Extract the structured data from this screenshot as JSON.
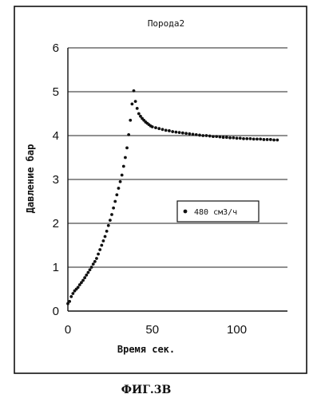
{
  "chart_data": {
    "type": "scatter",
    "title": "Порода2",
    "xlabel": "Время сек.",
    "ylabel": "Давление бар",
    "xlim": [
      0,
      130
    ],
    "ylim": [
      0,
      6
    ],
    "x_ticks": [
      "0",
      "50",
      "100"
    ],
    "y_ticks": [
      "0",
      "1",
      "2",
      "3",
      "4",
      "5",
      "6"
    ],
    "grid": "horizontal",
    "legend_position": "right-middle",
    "caption": "ФИГ.3В",
    "series": [
      {
        "name": "480 см3/ч",
        "x": [
          0,
          1,
          2,
          3,
          4,
          5,
          6,
          7,
          8,
          9,
          10,
          11,
          12,
          13,
          14,
          15,
          16,
          17,
          18,
          19,
          20,
          21,
          22,
          23,
          24,
          25,
          26,
          27,
          28,
          29,
          30,
          31,
          32,
          33,
          34,
          35,
          36,
          37,
          38,
          39,
          40,
          41,
          42,
          43,
          44,
          45,
          46,
          47,
          48,
          49,
          50,
          52,
          54,
          56,
          58,
          60,
          62,
          64,
          66,
          68,
          70,
          72,
          74,
          76,
          78,
          80,
          82,
          84,
          86,
          88,
          90,
          92,
          94,
          96,
          98,
          100,
          102,
          104,
          106,
          108,
          110,
          112,
          114,
          116,
          118,
          120,
          122,
          124
        ],
        "y": [
          0.17,
          0.22,
          0.33,
          0.4,
          0.46,
          0.5,
          0.54,
          0.6,
          0.65,
          0.7,
          0.76,
          0.82,
          0.88,
          0.94,
          1.0,
          1.07,
          1.13,
          1.2,
          1.3,
          1.4,
          1.5,
          1.6,
          1.7,
          1.82,
          1.95,
          2.07,
          2.2,
          2.35,
          2.5,
          2.65,
          2.8,
          2.95,
          3.1,
          3.3,
          3.5,
          3.72,
          4.02,
          4.35,
          4.72,
          5.02,
          4.78,
          4.62,
          4.5,
          4.44,
          4.39,
          4.35,
          4.31,
          4.28,
          4.25,
          4.22,
          4.2,
          4.18,
          4.16,
          4.14,
          4.12,
          4.11,
          4.09,
          4.08,
          4.07,
          4.06,
          4.05,
          4.04,
          4.03,
          4.02,
          4.01,
          4.0,
          4.0,
          3.99,
          3.98,
          3.98,
          3.97,
          3.96,
          3.96,
          3.95,
          3.95,
          3.94,
          3.94,
          3.93,
          3.93,
          3.93,
          3.92,
          3.92,
          3.92,
          3.91,
          3.91,
          3.91,
          3.9,
          3.9
        ]
      }
    ]
  }
}
